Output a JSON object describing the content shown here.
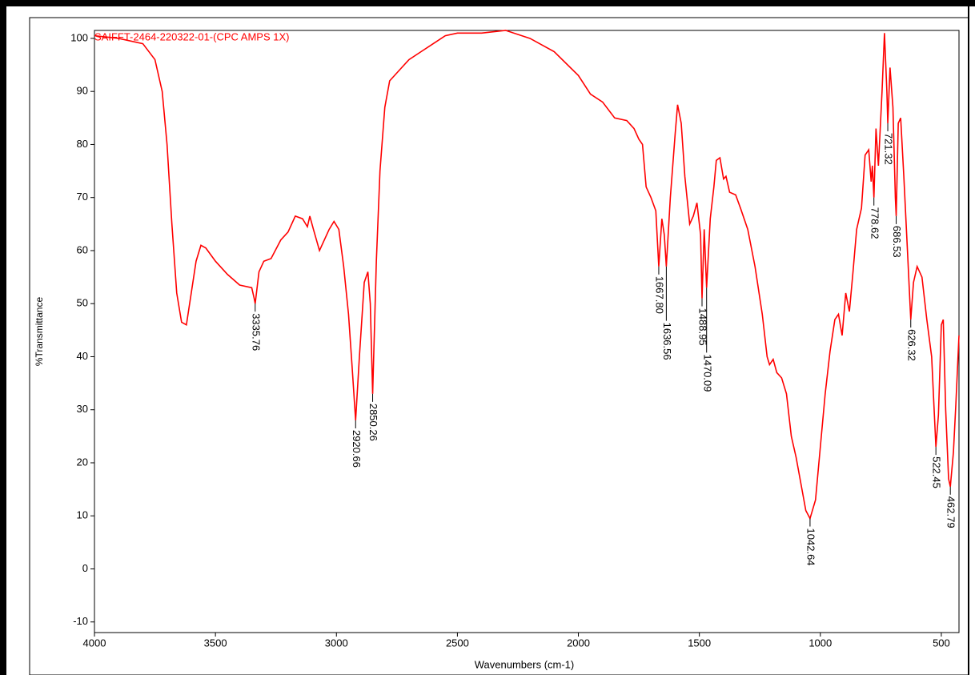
{
  "chart_data": {
    "type": "line",
    "title": "SAIFFT-2464-220322-01-(CPC AMPS 1X)",
    "x_label": "Wavenumbers (cm-1)",
    "y_label": "%Transmittance",
    "xlim": [
      4000,
      427
    ],
    "ylim": [
      -12,
      101.5
    ],
    "xticks": [
      4000,
      3500,
      3000,
      2500,
      2000,
      1500,
      1000,
      500
    ],
    "yticks": [
      -10,
      0,
      10,
      20,
      30,
      40,
      50,
      60,
      70,
      80,
      90,
      100
    ],
    "series": [
      {
        "color": "#ff0000",
        "x": [
          4000,
          3900,
          3800,
          3750,
          3720,
          3700,
          3680,
          3660,
          3640,
          3620,
          3600,
          3580,
          3560,
          3540,
          3500,
          3450,
          3400,
          3350,
          3340,
          3335.76,
          3320,
          3300,
          3270,
          3230,
          3200,
          3170,
          3140,
          3120,
          3110,
          3095,
          3070,
          3050,
          3030,
          3010,
          2990,
          2970,
          2950,
          2935,
          2920.66,
          2905,
          2885,
          2870,
          2860,
          2850.26,
          2835,
          2820,
          2800,
          2780,
          2750,
          2700,
          2650,
          2600,
          2550,
          2500,
          2400,
          2300,
          2200,
          2100,
          2000,
          1950,
          1900,
          1850,
          1800,
          1770,
          1750,
          1735,
          1720,
          1700,
          1680,
          1667.8,
          1655,
          1645,
          1636.56,
          1620,
          1600,
          1590,
          1575,
          1560,
          1540,
          1525,
          1510,
          1495,
          1488.95,
          1480,
          1470.09,
          1455,
          1440,
          1430,
          1415,
          1400,
          1390,
          1375,
          1350,
          1330,
          1300,
          1270,
          1240,
          1220,
          1210,
          1195,
          1180,
          1160,
          1140,
          1120,
          1100,
          1080,
          1060,
          1042.64,
          1020,
          1000,
          980,
          960,
          940,
          925,
          910,
          895,
          880,
          865,
          850,
          830,
          815,
          800,
          790,
          785,
          778.62,
          770,
          760,
          745,
          735,
          725,
          721.32,
          712,
          700,
          690,
          686.53,
          678,
          668,
          655,
          640,
          626.32,
          615,
          600,
          580,
          560,
          540,
          522.45,
          512,
          500,
          492,
          482,
          470,
          462.79,
          450,
          440,
          427
        ],
        "values": [
          100.5,
          100,
          99,
          96,
          90,
          80,
          65,
          52,
          46.5,
          46,
          52,
          58,
          61,
          60.5,
          58,
          55.5,
          53.5,
          53,
          51,
          50,
          56,
          58,
          58.5,
          62,
          63.5,
          66.5,
          66,
          64.5,
          66.5,
          64,
          60,
          62,
          64,
          65.5,
          64,
          57,
          48,
          38,
          28,
          40,
          54,
          56,
          50,
          33,
          58,
          75,
          87,
          92,
          93.5,
          96,
          97.5,
          99,
          100.5,
          101,
          101,
          101.5,
          100,
          97.5,
          93,
          89.5,
          88,
          85,
          84.5,
          83,
          81,
          80,
          72,
          70,
          67.5,
          57,
          66,
          63,
          57,
          70,
          82,
          87.5,
          84,
          74,
          65,
          66.5,
          69,
          63,
          51,
          64,
          53,
          66,
          72,
          77,
          77.5,
          73.5,
          74,
          71,
          70.5,
          68,
          64,
          57,
          48,
          40,
          38.5,
          39.5,
          37,
          36,
          33,
          25,
          21,
          16,
          11,
          9.5,
          13,
          23,
          33,
          41,
          47,
          48,
          44,
          52,
          48.5,
          56,
          64,
          68,
          78,
          79,
          73,
          76,
          70,
          83,
          76,
          90,
          101,
          90,
          84,
          94.5,
          87,
          70,
          66.5,
          84,
          85,
          74,
          60,
          47,
          54,
          57,
          55,
          47,
          40,
          23,
          29,
          46,
          47,
          30,
          17,
          15.5,
          22,
          31,
          44
        ]
      }
    ],
    "peaks": [
      {
        "x": {
          "value": 3335.76,
          "label": "3335.76"
        },
        "y": 50
      },
      {
        "x": {
          "value": 2920.66,
          "label": "2920.66"
        },
        "y": 28
      },
      {
        "x": {
          "value": 2850.26,
          "label": "2850.26"
        },
        "y": 33
      },
      {
        "x": {
          "value": 1667.8,
          "label": "1667.80"
        },
        "y": 57
      },
      {
        "x": {
          "value": 1636.56,
          "label": "1636.56"
        },
        "y": 57
      },
      {
        "x": {
          "value": 1488.95,
          "label": "1488.95"
        },
        "y": 51
      },
      {
        "x": {
          "value": 1470.09,
          "label": "1470.09"
        },
        "y": 53
      },
      {
        "x": {
          "value": 1042.64,
          "label": "1042.64"
        },
        "y": 9.5
      },
      {
        "x": {
          "value": 778.62,
          "label": "778.62"
        },
        "y": 70
      },
      {
        "x": {
          "value": 721.32,
          "label": "721.32"
        },
        "y": 84
      },
      {
        "x": {
          "value": 686.53,
          "label": "686.53"
        },
        "y": 66.5
      },
      {
        "x": {
          "value": 626.32,
          "label": "626.32"
        },
        "y": 47
      },
      {
        "x": {
          "value": 522.45,
          "label": "522.45"
        },
        "y": 23
      },
      {
        "x": {
          "value": 462.79,
          "label": "462.79"
        },
        "y": 15.5
      }
    ]
  }
}
